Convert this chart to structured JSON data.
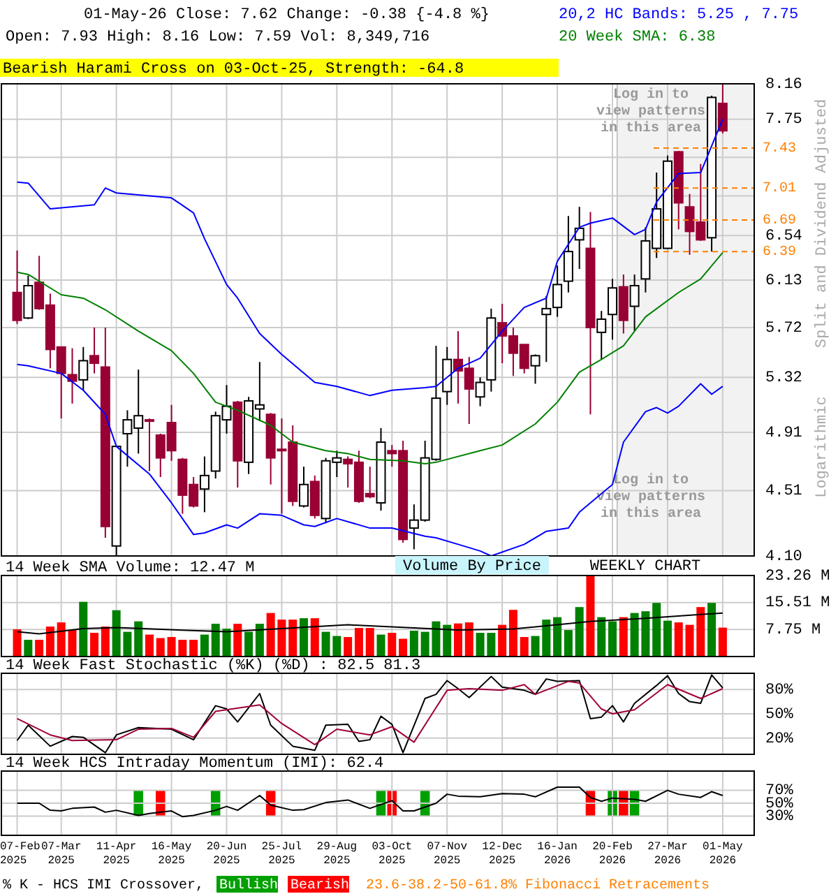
{
  "chart_data": [
    {
      "type": "candlestick",
      "title": "01-May-26   Close: 7.62   Change: -0.38 {-4.8 %}",
      "subtitle": "Open: 7.93    High: 8.16    Low: 7.59    Vol: 8,349,716",
      "legend": "top right",
      "log": true,
      "grid": true,
      "tick_labels": "y",
      "xlim": [
        "2025-01-28",
        "2026-05-21"
      ],
      "xticks": [
        "2025-02-07",
        "2025-03-07",
        "2025-04-11",
        "2025-05-16",
        "2025-06-20",
        "2025-07-25",
        "2025-08-29",
        "2025-10-03",
        "2025-11-07",
        "2025-12-12",
        "2026-01-16",
        "2026-02-20",
        "2026-03-27",
        "2026-05-01"
      ],
      "ylim": [
        4.1,
        8.16
      ],
      "yticks": [
        {
          "value": 4.1,
          "label": "4.10"
        },
        4.51,
        4.91,
        5.32,
        5.72,
        6.13,
        6.54,
        {
          "value": 6.93,
          "label": null
        },
        {
          "value": 7.33,
          "label": null
        },
        7.75,
        8.16
      ],
      "x": [
        "2025-02-07",
        "2025-02-14",
        "2025-02-21",
        "2025-02-28",
        "2025-03-07",
        "2025-03-14",
        "2025-03-21",
        "2025-03-28",
        "2025-04-04",
        "2025-04-11",
        "2025-04-18",
        "2025-04-25",
        "2025-05-02",
        "2025-05-09",
        "2025-05-16",
        "2025-05-23",
        "2025-05-30",
        "2025-06-06",
        "2025-06-13",
        "2025-06-20",
        "2025-06-27",
        "2025-07-04",
        "2025-07-11",
        "2025-07-18",
        "2025-07-25",
        "2025-08-01",
        "2025-08-08",
        "2025-08-15",
        "2025-08-22",
        "2025-08-29",
        "2025-09-05",
        "2025-09-12",
        "2025-09-19",
        "2025-09-26",
        "2025-10-03",
        "2025-10-10",
        "2025-10-17",
        "2025-10-24",
        "2025-10-31",
        "2025-11-07",
        "2025-11-14",
        "2025-11-21",
        "2025-11-28",
        "2025-12-05",
        "2025-12-12",
        "2025-12-19",
        "2025-12-26",
        "2026-01-02",
        "2026-01-09",
        "2026-01-16",
        "2026-01-23",
        "2026-01-30",
        "2026-02-06",
        "2026-02-13",
        "2026-02-20",
        "2026-02-27",
        "2026-03-06",
        "2026-03-13",
        "2026-03-20",
        "2026-03-27",
        "2026-04-03",
        "2026-04-10",
        "2026-04-17",
        "2026-04-24",
        "2026-05-01"
      ],
      "ohlc": [
        [
          6.02,
          6.4,
          5.75,
          5.78
        ],
        [
          5.8,
          6.17,
          5.79,
          6.08
        ],
        [
          6.11,
          6.35,
          5.87,
          5.88
        ],
        [
          5.91,
          6.01,
          5.39,
          5.54
        ],
        [
          5.56,
          5.56,
          5.01,
          5.35
        ],
        [
          5.34,
          5.55,
          5.12,
          5.29
        ],
        [
          5.3,
          5.56,
          5.22,
          5.45
        ],
        [
          5.49,
          5.72,
          5.35,
          5.43
        ],
        [
          5.4,
          5.72,
          4.21,
          4.28
        ],
        [
          4.16,
          4.81,
          4.1,
          4.81
        ],
        [
          4.9,
          5.07,
          4.67,
          5.0
        ],
        [
          4.94,
          5.38,
          4.76,
          5.03
        ],
        [
          5.0,
          5.01,
          4.64,
          4.99
        ],
        [
          4.89,
          4.9,
          4.6,
          4.73
        ],
        [
          4.98,
          5.11,
          4.71,
          4.78
        ],
        [
          4.72,
          4.73,
          4.36,
          4.48
        ],
        [
          4.55,
          4.6,
          4.4,
          4.41
        ],
        [
          4.52,
          4.74,
          4.37,
          4.61
        ],
        [
          4.64,
          5.06,
          4.59,
          5.03
        ],
        [
          5.0,
          5.26,
          4.9,
          5.1
        ],
        [
          5.13,
          5.14,
          4.53,
          4.71
        ],
        [
          4.7,
          5.17,
          4.62,
          5.14
        ],
        [
          5.08,
          5.44,
          4.99,
          5.11
        ],
        [
          5.04,
          5.05,
          4.55,
          4.73
        ],
        [
          4.79,
          5.01,
          4.36,
          4.78
        ],
        [
          4.84,
          4.96,
          4.41,
          4.44
        ],
        [
          4.41,
          4.67,
          4.4,
          4.55
        ],
        [
          4.57,
          4.61,
          4.33,
          4.35
        ],
        [
          4.33,
          4.73,
          4.3,
          4.71
        ],
        [
          4.7,
          4.78,
          4.6,
          4.73
        ],
        [
          4.72,
          4.74,
          4.53,
          4.69
        ],
        [
          4.7,
          4.78,
          4.43,
          4.44
        ],
        [
          4.49,
          4.67,
          4.46,
          4.47
        ],
        [
          4.43,
          4.94,
          4.38,
          4.84
        ],
        [
          4.78,
          4.82,
          4.67,
          4.76
        ],
        [
          4.78,
          4.85,
          4.18,
          4.2
        ],
        [
          4.27,
          4.42,
          4.14,
          4.32
        ],
        [
          4.32,
          4.85,
          4.31,
          4.73
        ],
        [
          4.72,
          5.57,
          4.71,
          5.16
        ],
        [
          5.21,
          5.56,
          5.11,
          5.46
        ],
        [
          5.46,
          5.69,
          5.12,
          5.37
        ],
        [
          5.39,
          5.48,
          4.97,
          5.23
        ],
        [
          5.17,
          5.32,
          5.1,
          5.28
        ],
        [
          5.3,
          5.88,
          5.21,
          5.8
        ],
        [
          5.76,
          5.92,
          5.43,
          5.65
        ],
        [
          5.65,
          5.72,
          5.33,
          5.51
        ],
        [
          5.58,
          5.58,
          5.35,
          5.39
        ],
        [
          5.41,
          5.5,
          5.27,
          5.49
        ],
        [
          5.83,
          5.99,
          5.44,
          5.88
        ],
        [
          5.89,
          6.26,
          5.81,
          6.09
        ],
        [
          6.12,
          6.73,
          6.02,
          6.39
        ],
        [
          6.5,
          6.82,
          6.23,
          6.61
        ],
        [
          6.42,
          6.77,
          5.04,
          5.72
        ],
        [
          5.68,
          5.86,
          5.46,
          5.79
        ],
        [
          5.83,
          6.14,
          5.62,
          6.06
        ],
        [
          6.07,
          6.18,
          5.67,
          5.78
        ],
        [
          5.9,
          6.18,
          5.69,
          6.08
        ],
        [
          6.14,
          6.62,
          6.02,
          6.49
        ],
        [
          6.42,
          7.17,
          6.33,
          6.8
        ],
        [
          6.42,
          7.35,
          6.41,
          7.29
        ],
        [
          7.39,
          7.4,
          6.6,
          6.86
        ],
        [
          6.82,
          6.95,
          6.36,
          6.58
        ],
        [
          6.67,
          7.26,
          6.49,
          6.5
        ],
        [
          6.52,
          8.02,
          6.39,
          8.0
        ],
        [
          7.93,
          8.16,
          7.59,
          7.62
        ]
      ],
      "colors": [
        "#990033",
        "#ffffff",
        "#990033",
        "#990033",
        "#990033",
        "#990033",
        "#ffffff",
        "#990033",
        "#990033",
        "#ffffff",
        "#ffffff",
        "#ffffff",
        "#990033",
        "#990033",
        "#990033",
        "#990033",
        "#990033",
        "#ffffff",
        "#ffffff",
        "#ffffff",
        "#990033",
        "#ffffff",
        "#ffffff",
        "#990033",
        "#990033",
        "#990033",
        "#ffffff",
        "#990033",
        "#ffffff",
        "#ffffff",
        "#990033",
        "#990033",
        "#990033",
        "#ffffff",
        "#990033",
        "#990033",
        "#ffffff",
        "#ffffff",
        "#ffffff",
        "#ffffff",
        "#990033",
        "#990033",
        "#ffffff",
        "#ffffff",
        "#990033",
        "#990033",
        "#990033",
        "#ffffff",
        "#ffffff",
        "#ffffff",
        "#ffffff",
        "#ffffff",
        "#990033",
        "#ffffff",
        "#ffffff",
        "#990033",
        "#ffffff",
        "#ffffff",
        "#ffffff",
        "#ffffff",
        "#990033",
        "#990033",
        "#990033",
        "#ffffff",
        "#990033"
      ],
      "series": [
        {
          "type": "line",
          "name": "20,2 HC Bands: 5.25 , 7.75",
          "color": "#0000ff",
          "x": [
            "2025-02-07",
            "2025-02-14",
            "2025-02-28",
            "2025-03-28",
            "2025-04-04",
            "2025-04-11",
            "2025-05-16",
            "2025-05-30",
            "2025-06-06",
            "2025-06-20",
            "2025-06-27",
            "2025-07-11",
            "2025-07-25",
            "2025-08-15",
            "2025-08-29",
            "2025-09-19",
            "2025-10-03",
            "2025-10-24",
            "2025-10-31",
            "2025-11-14",
            "2025-11-28",
            "2025-12-12",
            "2025-12-26",
            "2026-01-09",
            "2026-01-16",
            "2026-01-30",
            "2026-02-06",
            "2026-02-20",
            "2026-03-06",
            "2026-03-13",
            "2026-03-20",
            "2026-04-03",
            "2026-04-17",
            "2026-05-01"
          ],
          "values": [
            7.07,
            7.06,
            6.8,
            6.84,
            7.01,
            6.96,
            6.91,
            6.76,
            6.51,
            6.09,
            5.97,
            5.67,
            5.5,
            5.28,
            5.25,
            5.18,
            5.22,
            5.24,
            5.25,
            5.39,
            5.47,
            5.69,
            5.89,
            5.97,
            6.3,
            6.62,
            6.66,
            6.71,
            6.55,
            6.6,
            6.87,
            7.16,
            7.17,
            7.75
          ]
        },
        {
          "type": "line",
          "color": "#0000ff",
          "x": [
            "2025-02-07",
            "2025-02-14",
            "2025-03-07",
            "2025-03-21",
            "2025-04-04",
            "2025-04-11",
            "2025-05-02",
            "2025-05-16",
            "2025-05-30",
            "2025-06-06",
            "2025-06-20",
            "2025-06-27",
            "2025-07-11",
            "2025-07-25",
            "2025-08-08",
            "2025-08-15",
            "2025-08-29",
            "2025-09-19",
            "2025-10-03",
            "2025-10-24",
            "2025-10-31",
            "2025-11-14",
            "2025-11-28",
            "2025-12-05",
            "2025-12-26",
            "2026-01-09",
            "2026-01-23",
            "2026-01-30",
            "2026-02-13",
            "2026-02-20",
            "2026-02-27",
            "2026-03-13",
            "2026-03-20",
            "2026-03-27",
            "2026-04-03",
            "2026-04-17",
            "2026-04-24",
            "2026-05-01"
          ],
          "values": [
            5.42,
            5.41,
            5.35,
            5.22,
            5.04,
            4.81,
            4.62,
            4.43,
            4.23,
            4.24,
            4.29,
            4.27,
            4.36,
            4.35,
            4.29,
            4.28,
            4.33,
            4.27,
            4.27,
            4.22,
            4.21,
            4.17,
            4.13,
            4.1,
            4.17,
            4.25,
            4.27,
            4.37,
            4.49,
            4.55,
            4.84,
            5.06,
            5.09,
            5.05,
            5.1,
            5.27,
            5.19,
            5.25
          ]
        },
        {
          "type": "line",
          "name": "20 Week SMA: 6.38",
          "color": "#008000",
          "x": [
            "2025-02-07",
            "2025-02-14",
            "2025-03-07",
            "2025-03-21",
            "2025-04-04",
            "2025-04-25",
            "2025-05-16",
            "2025-05-30",
            "2025-06-13",
            "2025-06-27",
            "2025-07-18",
            "2025-08-01",
            "2025-08-22",
            "2025-09-05",
            "2025-09-19",
            "2025-10-10",
            "2025-10-24",
            "2025-10-31",
            "2025-11-28",
            "2025-12-12",
            "2026-01-02",
            "2026-01-16",
            "2026-01-30",
            "2026-02-13",
            "2026-02-27",
            "2026-03-13",
            "2026-04-03",
            "2026-04-17",
            "2026-05-01"
          ],
          "values": [
            6.2,
            6.18,
            6.0,
            5.97,
            5.87,
            5.69,
            5.53,
            5.35,
            5.13,
            5.07,
            4.96,
            4.84,
            4.78,
            4.76,
            4.72,
            4.71,
            4.69,
            4.7,
            4.78,
            4.82,
            4.97,
            5.13,
            5.36,
            5.46,
            5.57,
            5.81,
            6.02,
            6.14,
            6.38
          ]
        }
      ],
      "ref_lines": [
        {
          "axis": "y",
          "value": 7.43,
          "label": "7.43",
          "color": "#ff8000",
          "line_style": "dashed"
        },
        {
          "axis": "y",
          "value": 7.01,
          "label": "7.01",
          "color": "#ff8000",
          "line_style": "dashed"
        },
        {
          "axis": "y",
          "value": 6.69,
          "label": "6.69",
          "color": "#ff8000",
          "line_style": "dashed"
        },
        {
          "axis": "y",
          "value": 6.39,
          "label": "6.39",
          "color": "#ff8000",
          "line_style": "dashed"
        }
      ],
      "bands": [
        {
          "axis": "x",
          "from": "2026-02-23",
          "to": "2026-05-21",
          "color": "#f2f2f2"
        }
      ],
      "annotations": [
        "Bearish Harami Cross on 03-Oct-25, Strength: -64.8",
        "Log in to view patterns in this area",
        "Log in to view patterns in this area",
        "Split and Dividend Adjusted",
        "Logarithmic",
        "Volume By Price",
        "WEEKLY CHART"
      ]
    },
    {
      "type": "bar",
      "title": "14 Week SMA Volume: 12.47 M",
      "grid": true,
      "tick_labels": "y",
      "xlim": [
        "2025-01-28",
        "2026-05-21"
      ],
      "xticks": [
        "2025-02-07",
        "2025-03-07",
        "2025-04-11",
        "2025-05-16",
        "2025-06-20",
        "2025-07-25",
        "2025-08-29",
        "2025-10-03",
        "2025-11-07",
        "2025-12-12",
        "2026-01-16",
        "2026-02-20",
        "2026-03-27",
        "2026-05-01"
      ],
      "ylim": [
        0,
        23.26
      ],
      "yticks": [
        {
          "value": 7.75,
          "label": "7.75 M"
        },
        {
          "value": 15.51,
          "label": "15.51 M"
        },
        {
          "value": 23.26,
          "label": "23.26 M"
        }
      ],
      "x": [
        "2025-02-07",
        "2025-02-14",
        "2025-02-21",
        "2025-02-28",
        "2025-03-07",
        "2025-03-14",
        "2025-03-21",
        "2025-03-28",
        "2025-04-04",
        "2025-04-11",
        "2025-04-18",
        "2025-04-25",
        "2025-05-02",
        "2025-05-09",
        "2025-05-16",
        "2025-05-23",
        "2025-05-30",
        "2025-06-06",
        "2025-06-13",
        "2025-06-20",
        "2025-06-27",
        "2025-07-04",
        "2025-07-11",
        "2025-07-18",
        "2025-07-25",
        "2025-08-01",
        "2025-08-08",
        "2025-08-15",
        "2025-08-22",
        "2025-08-29",
        "2025-09-05",
        "2025-09-12",
        "2025-09-19",
        "2025-09-26",
        "2025-10-03",
        "2025-10-10",
        "2025-10-17",
        "2025-10-24",
        "2025-10-31",
        "2025-11-07",
        "2025-11-14",
        "2025-11-21",
        "2025-11-28",
        "2025-12-05",
        "2025-12-12",
        "2025-12-19",
        "2025-12-26",
        "2026-01-02",
        "2026-01-09",
        "2026-01-16",
        "2026-01-23",
        "2026-01-30",
        "2026-02-06",
        "2026-02-13",
        "2026-02-20",
        "2026-02-27",
        "2026-03-06",
        "2026-03-13",
        "2026-03-20",
        "2026-03-27",
        "2026-04-03",
        "2026-04-10",
        "2026-04-17",
        "2026-04-24",
        "2026-05-01"
      ],
      "series": [
        {
          "type": "bar",
          "values": [
            7.8,
            4.8,
            4.8,
            8.6,
            9.8,
            7.6,
            15.7,
            6.8,
            8.6,
            13.3,
            7.1,
            10.1,
            6.3,
            5.3,
            5.6,
            4.8,
            4.8,
            6.3,
            9.4,
            8.0,
            9.4,
            7.1,
            9.4,
            12.5,
            10.6,
            10.6,
            11.0,
            11.0,
            7.1,
            5.9,
            5.6,
            8.2,
            8.2,
            6.3,
            6.8,
            5.1,
            7.4,
            7.1,
            10.1,
            9.1,
            9.5,
            9.8,
            6.8,
            6.8,
            9.1,
            13.4,
            5.6,
            5.9,
            10.6,
            11.3,
            7.6,
            14.2,
            23.2,
            11.3,
            10.1,
            11.3,
            12.5,
            13.0,
            15.4,
            10.3,
            9.8,
            9.1,
            14.2,
            15.4,
            8.3
          ],
          "colors": [
            "#ff0000",
            "#008000",
            "#ff0000",
            "#ff0000",
            "#ff0000",
            "#ff0000",
            "#008000",
            "#ff0000",
            "#ff0000",
            "#008000",
            "#008000",
            "#008000",
            "#ff0000",
            "#ff0000",
            "#ff0000",
            "#ff0000",
            "#ff0000",
            "#008000",
            "#008000",
            "#008000",
            "#ff0000",
            "#008000",
            "#008000",
            "#ff0000",
            "#ff0000",
            "#ff0000",
            "#008000",
            "#ff0000",
            "#008000",
            "#008000",
            "#ff0000",
            "#ff0000",
            "#ff0000",
            "#008000",
            "#ff0000",
            "#ff0000",
            "#008000",
            "#008000",
            "#008000",
            "#008000",
            "#ff0000",
            "#ff0000",
            "#008000",
            "#008000",
            "#ff0000",
            "#ff0000",
            "#ff0000",
            "#008000",
            "#008000",
            "#008000",
            "#008000",
            "#008000",
            "#ff0000",
            "#008000",
            "#008000",
            "#ff0000",
            "#008000",
            "#008000",
            "#008000",
            "#008000",
            "#ff0000",
            "#ff0000",
            "#ff0000",
            "#008000",
            "#ff0000"
          ]
        },
        {
          "type": "line",
          "color": "#000000",
          "x": [
            "2025-02-07",
            "2025-02-21",
            "2025-03-21",
            "2025-04-11",
            "2025-06-20",
            "2025-09-05",
            "2025-11-14",
            "2025-12-19",
            "2026-02-06",
            "2026-03-13",
            "2026-05-01"
          ],
          "values": [
            7.1,
            6.5,
            8.0,
            8.3,
            7.1,
            9.1,
            7.6,
            7.9,
            10.1,
            11.0,
            12.5
          ]
        }
      ]
    },
    {
      "type": "line",
      "title": "14 Week Fast Stochastic (%K) (%D) : 82.5 81.3",
      "grid": true,
      "tick_labels": "y",
      "xlim": [
        "2025-01-28",
        "2026-05-21"
      ],
      "xticks": [
        "2025-02-07",
        "2025-03-07",
        "2025-04-11",
        "2025-05-16",
        "2025-06-20",
        "2025-07-25",
        "2025-08-29",
        "2025-10-03",
        "2025-11-07",
        "2025-12-12",
        "2026-01-16",
        "2026-02-20",
        "2026-03-27",
        "2026-05-01"
      ],
      "ylim": [
        0,
        100
      ],
      "yticks": [
        {
          "value": 20,
          "label": "20%"
        },
        {
          "value": 50,
          "label": "50%"
        },
        {
          "value": 80,
          "label": "80%"
        }
      ],
      "series": [
        {
          "type": "line",
          "color": "#000000",
          "x": [
            "2025-02-07",
            "2025-02-14",
            "2025-02-28",
            "2025-03-14",
            "2025-03-21",
            "2025-04-04",
            "2025-04-11",
            "2025-04-25",
            "2025-05-16",
            "2025-05-30",
            "2025-06-13",
            "2025-06-20",
            "2025-06-27",
            "2025-07-11",
            "2025-07-18",
            "2025-08-01",
            "2025-08-15",
            "2025-08-22",
            "2025-09-05",
            "2025-09-12",
            "2025-09-19",
            "2025-09-26",
            "2025-10-03",
            "2025-10-10",
            "2025-10-24",
            "2025-10-31",
            "2025-11-07",
            "2025-11-14",
            "2025-11-21",
            "2025-12-05",
            "2025-12-12",
            "2025-12-26",
            "2026-01-02",
            "2026-01-09",
            "2026-01-16",
            "2026-01-30",
            "2026-02-06",
            "2026-02-13",
            "2026-02-20",
            "2026-02-27",
            "2026-03-06",
            "2026-03-20",
            "2026-03-27",
            "2026-04-03",
            "2026-04-10",
            "2026-04-17",
            "2026-04-24",
            "2026-05-01"
          ],
          "values": [
            17,
            36,
            10,
            22,
            21,
            2,
            24,
            33,
            31,
            18,
            60,
            56,
            40,
            75,
            36,
            10,
            5,
            36,
            37,
            16,
            18,
            47,
            37,
            2,
            69,
            74,
            91,
            81,
            70,
            96,
            83,
            79,
            74,
            93,
            90,
            91,
            44,
            46,
            60,
            40,
            63,
            85,
            97,
            75,
            65,
            63,
            98,
            82
          ]
        },
        {
          "type": "line",
          "color": "#a0003c",
          "x": [
            "2025-02-07",
            "2025-02-28",
            "2025-03-14",
            "2025-04-11",
            "2025-04-25",
            "2025-05-16",
            "2025-05-30",
            "2025-06-13",
            "2025-07-11",
            "2025-07-25",
            "2025-08-15",
            "2025-08-29",
            "2025-09-19",
            "2025-10-03",
            "2025-10-17",
            "2025-11-07",
            "2025-11-21",
            "2025-12-12",
            "2025-12-26",
            "2026-01-02",
            "2026-01-23",
            "2026-01-30",
            "2026-02-13",
            "2026-02-20",
            "2026-03-06",
            "2026-03-27",
            "2026-04-17",
            "2026-05-01"
          ],
          "values": [
            44,
            24,
            17,
            18,
            31,
            32,
            21,
            53,
            61,
            38,
            12,
            31,
            24,
            34,
            15,
            79,
            81,
            79,
            86,
            74,
            90,
            88,
            56,
            50,
            55,
            86,
            69,
            81
          ]
        }
      ]
    },
    {
      "type": "line",
      "title": "14 Week HCS Intraday Momentum (IMI): 62.4",
      "grid": true,
      "xlim": [
        "2025-01-28",
        "2026-05-21"
      ],
      "xticks": [
        {
          "value": "2025-02-07",
          "label": "07-Feb 2025"
        },
        {
          "value": "2025-03-07",
          "label": "07-Mar 2025"
        },
        {
          "value": "2025-04-11",
          "label": "11-Apr 2025"
        },
        {
          "value": "2025-05-16",
          "label": "16-May 2025"
        },
        {
          "value": "2025-06-20",
          "label": "20-Jun 2025"
        },
        {
          "value": "2025-07-25",
          "label": "25-Jul 2025"
        },
        {
          "value": "2025-08-29",
          "label": "29-Aug 2025"
        },
        {
          "value": "2025-10-03",
          "label": "03-Oct 2025"
        },
        {
          "value": "2025-11-07",
          "label": "07-Nov 2025"
        },
        {
          "value": "2025-12-12",
          "label": "12-Dec 2025"
        },
        {
          "value": "2026-01-16",
          "label": "16-Jan 2026"
        },
        {
          "value": "2026-02-20",
          "label": "20-Feb 2026"
        },
        {
          "value": "2026-03-27",
          "label": "27-Mar 2026"
        },
        {
          "value": "2026-05-01",
          "label": "01-May 2026"
        }
      ],
      "ylim": [
        0,
        100
      ],
      "yticks": [
        {
          "value": 30,
          "label": "30%"
        },
        {
          "value": 50,
          "label": "50%"
        },
        {
          "value": 70,
          "label": "70%"
        }
      ],
      "series": [
        {
          "type": "line",
          "color": "#000000",
          "x": [
            "2025-02-07",
            "2025-02-21",
            "2025-02-28",
            "2025-03-07",
            "2025-03-14",
            "2025-03-28",
            "2025-04-04",
            "2025-04-11",
            "2025-04-25",
            "2025-05-02",
            "2025-05-16",
            "2025-05-23",
            "2025-05-30",
            "2025-06-13",
            "2025-06-20",
            "2025-06-27",
            "2025-07-11",
            "2025-07-18",
            "2025-08-01",
            "2025-08-08",
            "2025-08-22",
            "2025-09-05",
            "2025-09-19",
            "2025-10-03",
            "2025-10-10",
            "2025-10-17",
            "2025-10-31",
            "2025-11-07",
            "2025-11-14",
            "2025-11-28",
            "2025-12-12",
            "2025-12-26",
            "2026-01-02",
            "2026-01-16",
            "2026-01-30",
            "2026-02-06",
            "2026-02-13",
            "2026-02-20",
            "2026-03-06",
            "2026-03-13",
            "2026-03-27",
            "2026-04-03",
            "2026-04-17",
            "2026-04-24",
            "2026-05-01"
          ],
          "values": [
            50,
            50,
            39,
            38,
            42,
            44,
            36,
            39,
            31,
            34,
            38,
            29,
            31,
            39,
            45,
            39,
            62,
            47,
            39,
            40,
            51,
            55,
            42,
            54,
            38,
            38,
            50,
            64,
            61,
            60,
            65,
            64,
            60,
            75,
            75,
            59,
            53,
            58,
            56,
            53,
            70,
            64,
            59,
            68,
            62
          ]
        }
      ],
      "bands": [
        {
          "axis": "x",
          "from": "2025-04-22",
          "to": "2025-04-28",
          "color": "#00a000"
        },
        {
          "axis": "x",
          "from": "2025-05-06",
          "to": "2025-05-12",
          "color": "#ff0000"
        },
        {
          "axis": "x",
          "from": "2025-06-10",
          "to": "2025-06-16",
          "color": "#00a000"
        },
        {
          "axis": "x",
          "from": "2025-07-15",
          "to": "2025-07-21",
          "color": "#ff0000"
        },
        {
          "axis": "x",
          "from": "2025-09-23",
          "to": "2025-09-29",
          "color": "#00a000"
        },
        {
          "axis": "x",
          "from": "2025-09-30",
          "to": "2025-10-06",
          "color": "#ff0000"
        },
        {
          "axis": "x",
          "from": "2025-10-21",
          "to": "2025-10-27",
          "color": "#00a000"
        },
        {
          "axis": "x",
          "from": "2026-02-03",
          "to": "2026-02-09",
          "color": "#ff0000"
        },
        {
          "axis": "x",
          "from": "2026-02-17",
          "to": "2026-02-23",
          "color": "#00a000"
        },
        {
          "axis": "x",
          "from": "2026-02-24",
          "to": "2026-03-02",
          "color": "#ff0000"
        },
        {
          "axis": "x",
          "from": "2026-03-03",
          "to": "2026-03-09",
          "color": "#00a000"
        }
      ],
      "annotations": [
        "% K - HCS IMI Crossover,",
        "Bullish",
        "Bearish",
        "23.6-38.2-50-61.8% Fibonacci Retracements"
      ]
    }
  ]
}
